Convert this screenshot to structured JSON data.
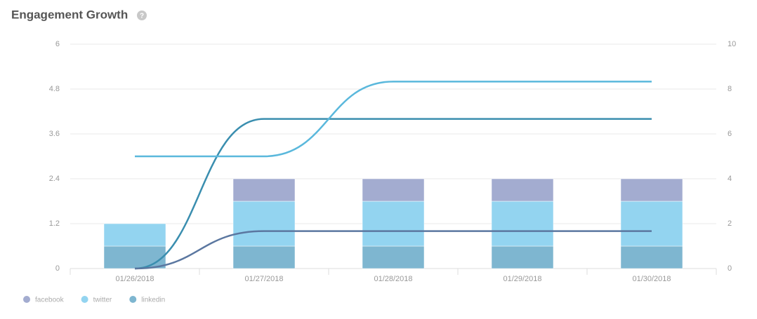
{
  "chart_data": {
    "type": "bar-line",
    "title": "Engagement Growth",
    "categories": [
      "01/26/2018",
      "01/27/2018",
      "01/28/2018",
      "01/29/2018",
      "01/30/2018"
    ],
    "series": [
      {
        "name": "linkedin",
        "color": "#7eb6d0",
        "line_color": "#3a8eaf",
        "values": [
          0.6,
          0.6,
          0.6,
          0.6,
          0.6
        ],
        "line_values": [
          0,
          4,
          4,
          4,
          4
        ]
      },
      {
        "name": "twitter",
        "color": "#93d4f0",
        "line_color": "#5ab8dc",
        "values": [
          0.6,
          1.2,
          1.2,
          1.2,
          1.2
        ],
        "line_values": [
          3,
          3,
          5,
          5,
          5
        ]
      },
      {
        "name": "facebook",
        "color": "#a3acd0",
        "line_color": "#5b77a0",
        "values": [
          0,
          0.6,
          0.6,
          0.6,
          0.6
        ],
        "line_values": [
          0,
          1,
          1,
          1,
          1
        ]
      }
    ],
    "stacked": true,
    "ylim": [
      0,
      6
    ],
    "yticks": [
      0,
      1.2,
      2.4,
      3.6,
      4.8,
      6
    ],
    "y2lim": [
      0,
      10
    ],
    "y2ticks": [
      0,
      2,
      4,
      6,
      8,
      10
    ],
    "grid": true
  }
}
